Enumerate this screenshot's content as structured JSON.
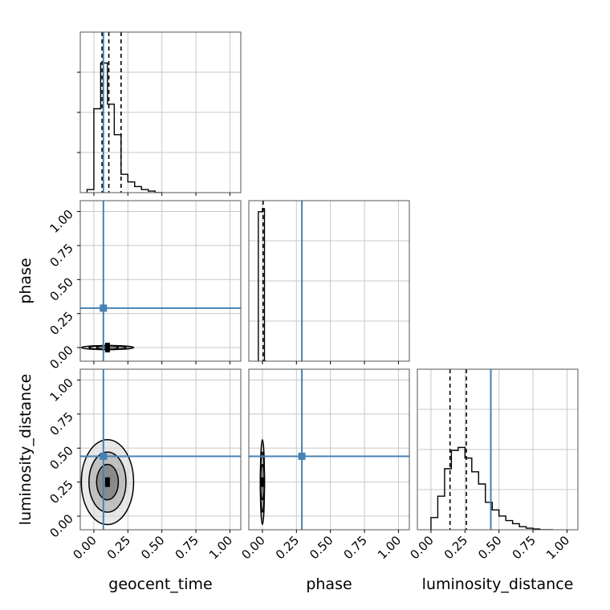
{
  "chart_data": {
    "type": "corner",
    "parameters": [
      "geocent_time",
      "phase",
      "luminosity_distance"
    ],
    "labels": {
      "x": [
        "geocent_time",
        "phase",
        "luminosity_distance"
      ],
      "y": [
        "phase",
        "luminosity_distance"
      ]
    },
    "axis_range": [
      -0.1,
      1.08
    ],
    "ticks": [
      0.0,
      0.25,
      0.5,
      0.75,
      1.0
    ],
    "tick_labels": [
      "0.00",
      "0.25",
      "0.50",
      "0.75",
      "1.00"
    ],
    "grid": true,
    "colors": {
      "truth": "#4682b4",
      "hist": "#000000",
      "quantile": "#000000"
    },
    "truths": {
      "geocent_time": 0.07,
      "phase": 0.29,
      "luminosity_distance": 0.44
    },
    "quantiles": {
      "geocent_time": [
        0.06,
        0.11,
        0.2
      ],
      "phase": [
        0.005
      ],
      "luminosity_distance": [
        0.14,
        0.26,
        0.44
      ]
    },
    "histograms": {
      "geocent_time": {
        "bin_edges": [
          -0.05,
          0.0,
          0.05,
          0.1,
          0.15,
          0.2,
          0.25,
          0.3,
          0.35,
          0.4,
          0.45,
          0.5
        ],
        "density": [
          0.02,
          0.55,
          0.85,
          0.58,
          0.38,
          0.12,
          0.07,
          0.04,
          0.02,
          0.01,
          0.0
        ]
      },
      "phase": {
        "bin_edges": [
          -0.03,
          0.0,
          0.015,
          0.03
        ],
        "density": [
          0.98,
          1.0,
          0.0
        ]
      },
      "luminosity_distance": {
        "bin_edges": [
          0.0,
          0.05,
          0.1,
          0.15,
          0.2,
          0.25,
          0.3,
          0.35,
          0.4,
          0.45,
          0.5,
          0.55,
          0.6,
          0.65,
          0.7,
          0.75,
          0.8,
          0.85,
          0.9
        ],
        "density": [
          0.08,
          0.22,
          0.4,
          0.52,
          0.54,
          0.47,
          0.38,
          0.3,
          0.18,
          0.13,
          0.09,
          0.06,
          0.04,
          0.02,
          0.01,
          0.005,
          0.0,
          0.0
        ]
      }
    },
    "joint_centers": {
      "geocent_time_vs_phase": [
        0.1,
        0.0
      ],
      "geocent_time_vs_luminosity_distance": [
        0.1,
        0.25
      ],
      "phase_vs_luminosity_distance": [
        0.0,
        0.25
      ]
    }
  }
}
